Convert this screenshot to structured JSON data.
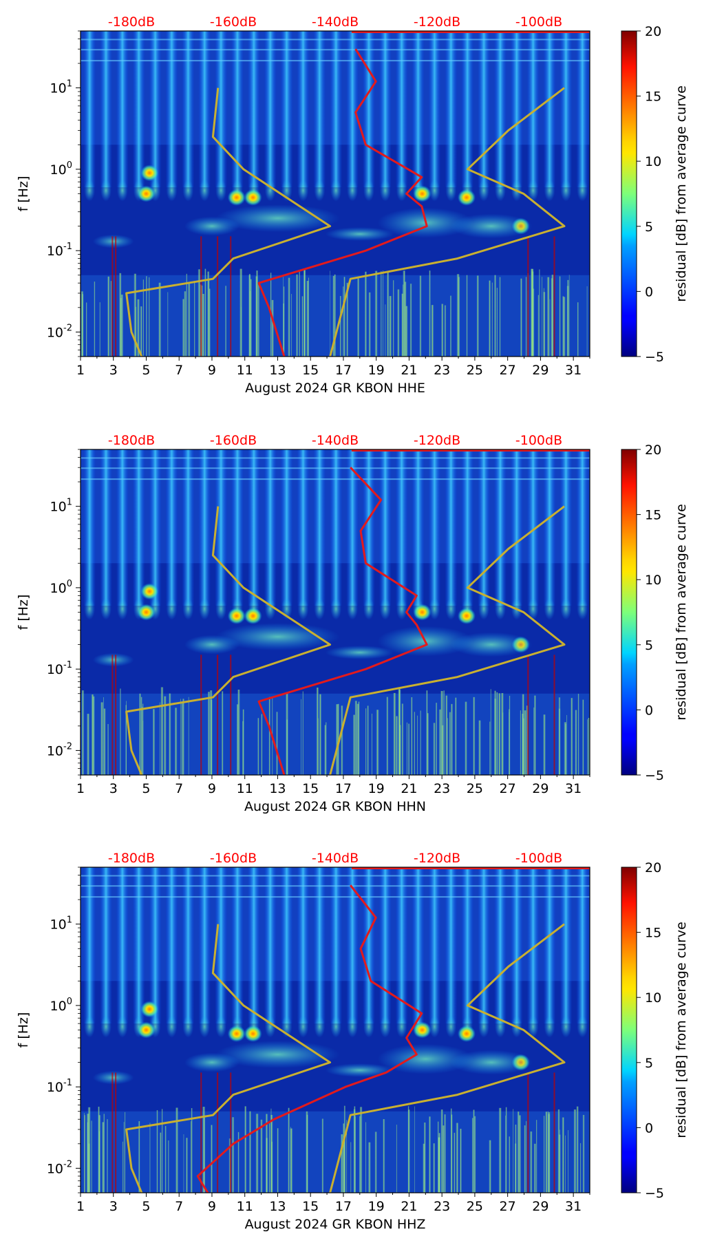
{
  "chart_data": [
    {
      "type": "heatmap",
      "title": "",
      "xlabel": "August 2024 GR KBON  HHE",
      "ylabel": "f [Hz]",
      "x_ticks": [
        "1",
        "3",
        "5",
        "7",
        "9",
        "11",
        "13",
        "15",
        "17",
        "19",
        "21",
        "23",
        "25",
        "27",
        "29",
        "31"
      ],
      "xlim": [
        1,
        32
      ],
      "ylim_hz": [
        0.005,
        50
      ],
      "y_scale": "log",
      "y_ticks": [
        {
          "exp": "-2"
        },
        {
          "exp": "-1"
        },
        {
          "exp": "0"
        },
        {
          "exp": "1"
        }
      ],
      "top_axis_labels": [
        "-180dB",
        "-160dB",
        "-140dB",
        "-120dB",
        "-100dB"
      ],
      "colorbar": {
        "label": "residual [dB] from average curve",
        "min": -5,
        "max": 20,
        "ticks": [
          "20",
          "15",
          "10",
          "5",
          "0",
          "−5"
        ]
      },
      "noise_model_color": "#c9b030",
      "average_curve_color": "#e31a1c",
      "noise_model_hz_vs_db": [
        [
          0.005,
          -178
        ],
        [
          0.01,
          -180
        ],
        [
          0.03,
          -181
        ],
        [
          0.045,
          -164
        ],
        [
          0.08,
          -160
        ],
        [
          0.2,
          -141
        ],
        [
          1,
          -158
        ],
        [
          2.5,
          -164
        ],
        [
          10,
          -163
        ]
      ],
      "high_noise_model_hz_vs_db": [
        [
          0.005,
          -141
        ],
        [
          0.045,
          -137
        ],
        [
          0.08,
          -116
        ],
        [
          0.2,
          -95
        ],
        [
          0.5,
          -103
        ],
        [
          1,
          -114
        ],
        [
          3,
          -106
        ],
        [
          10,
          -95
        ]
      ],
      "average_psd_curve_hz_vs_db": [
        [
          0.005,
          -150
        ],
        [
          0.02,
          -153
        ],
        [
          0.04,
          -155
        ],
        [
          0.1,
          -134
        ],
        [
          0.2,
          -122
        ],
        [
          0.35,
          -123
        ],
        [
          0.5,
          -126
        ],
        [
          0.8,
          -123
        ],
        [
          2,
          -134
        ],
        [
          5,
          -136
        ],
        [
          12,
          -132
        ],
        [
          30,
          -136
        ]
      ]
    },
    {
      "type": "heatmap",
      "title": "",
      "xlabel": "August 2024 GR KBON  HHN",
      "ylabel": "f [Hz]",
      "x_ticks": [
        "1",
        "3",
        "5",
        "7",
        "9",
        "11",
        "13",
        "15",
        "17",
        "19",
        "21",
        "23",
        "25",
        "27",
        "29",
        "31"
      ],
      "xlim": [
        1,
        32
      ],
      "ylim_hz": [
        0.005,
        50
      ],
      "y_scale": "log",
      "y_ticks": [
        {
          "exp": "-2"
        },
        {
          "exp": "-1"
        },
        {
          "exp": "0"
        },
        {
          "exp": "1"
        }
      ],
      "top_axis_labels": [
        "-180dB",
        "-160dB",
        "-140dB",
        "-120dB",
        "-100dB"
      ],
      "colorbar": {
        "label": "residual [dB] from average curve",
        "min": -5,
        "max": 20,
        "ticks": [
          "20",
          "15",
          "10",
          "5",
          "0",
          "−5"
        ]
      },
      "noise_model_color": "#c9b030",
      "average_curve_color": "#e31a1c",
      "noise_model_hz_vs_db": [
        [
          0.005,
          -178
        ],
        [
          0.01,
          -180
        ],
        [
          0.03,
          -181
        ],
        [
          0.045,
          -164
        ],
        [
          0.08,
          -160
        ],
        [
          0.2,
          -141
        ],
        [
          1,
          -158
        ],
        [
          2.5,
          -164
        ],
        [
          10,
          -163
        ]
      ],
      "high_noise_model_hz_vs_db": [
        [
          0.005,
          -141
        ],
        [
          0.045,
          -137
        ],
        [
          0.08,
          -116
        ],
        [
          0.2,
          -95
        ],
        [
          0.5,
          -103
        ],
        [
          1,
          -114
        ],
        [
          3,
          -106
        ],
        [
          10,
          -95
        ]
      ],
      "average_psd_curve_hz_vs_db": [
        [
          0.005,
          -150
        ],
        [
          0.02,
          -153
        ],
        [
          0.04,
          -155
        ],
        [
          0.1,
          -134
        ],
        [
          0.2,
          -122
        ],
        [
          0.35,
          -124
        ],
        [
          0.5,
          -126
        ],
        [
          0.8,
          -124
        ],
        [
          2,
          -134
        ],
        [
          5,
          -135
        ],
        [
          12,
          -131
        ],
        [
          30,
          -137
        ]
      ]
    },
    {
      "type": "heatmap",
      "title": "",
      "xlabel": "August 2024 GR KBON  HHZ",
      "ylabel": "f [Hz]",
      "x_ticks": [
        "1",
        "3",
        "5",
        "7",
        "9",
        "11",
        "13",
        "15",
        "17",
        "19",
        "21",
        "23",
        "25",
        "27",
        "29",
        "31"
      ],
      "xlim": [
        1,
        32
      ],
      "ylim_hz": [
        0.005,
        50
      ],
      "y_scale": "log",
      "y_ticks": [
        {
          "exp": "-2"
        },
        {
          "exp": "-1"
        },
        {
          "exp": "0"
        },
        {
          "exp": "1"
        }
      ],
      "top_axis_labels": [
        "-180dB",
        "-160dB",
        "-140dB",
        "-120dB",
        "-100dB"
      ],
      "colorbar": {
        "label": "residual [dB] from average curve",
        "min": -5,
        "max": 20,
        "ticks": [
          "20",
          "15",
          "10",
          "5",
          "0",
          "−5"
        ]
      },
      "noise_model_color": "#c9b030",
      "average_curve_color": "#e31a1c",
      "noise_model_hz_vs_db": [
        [
          0.005,
          -178
        ],
        [
          0.01,
          -180
        ],
        [
          0.03,
          -181
        ],
        [
          0.045,
          -164
        ],
        [
          0.08,
          -160
        ],
        [
          0.2,
          -141
        ],
        [
          1,
          -158
        ],
        [
          2.5,
          -164
        ],
        [
          10,
          -163
        ]
      ],
      "high_noise_model_hz_vs_db": [
        [
          0.005,
          -141
        ],
        [
          0.045,
          -137
        ],
        [
          0.08,
          -116
        ],
        [
          0.2,
          -95
        ],
        [
          0.5,
          -103
        ],
        [
          1,
          -114
        ],
        [
          3,
          -106
        ],
        [
          10,
          -95
        ]
      ],
      "average_psd_curve_hz_vs_db": [
        [
          0.005,
          -165
        ],
        [
          0.008,
          -167
        ],
        [
          0.02,
          -160
        ],
        [
          0.04,
          -152
        ],
        [
          0.1,
          -138
        ],
        [
          0.15,
          -130
        ],
        [
          0.25,
          -124
        ],
        [
          0.4,
          -126
        ],
        [
          0.8,
          -123
        ],
        [
          2,
          -133
        ],
        [
          5,
          -135
        ],
        [
          12,
          -132
        ],
        [
          30,
          -137
        ]
      ]
    }
  ]
}
